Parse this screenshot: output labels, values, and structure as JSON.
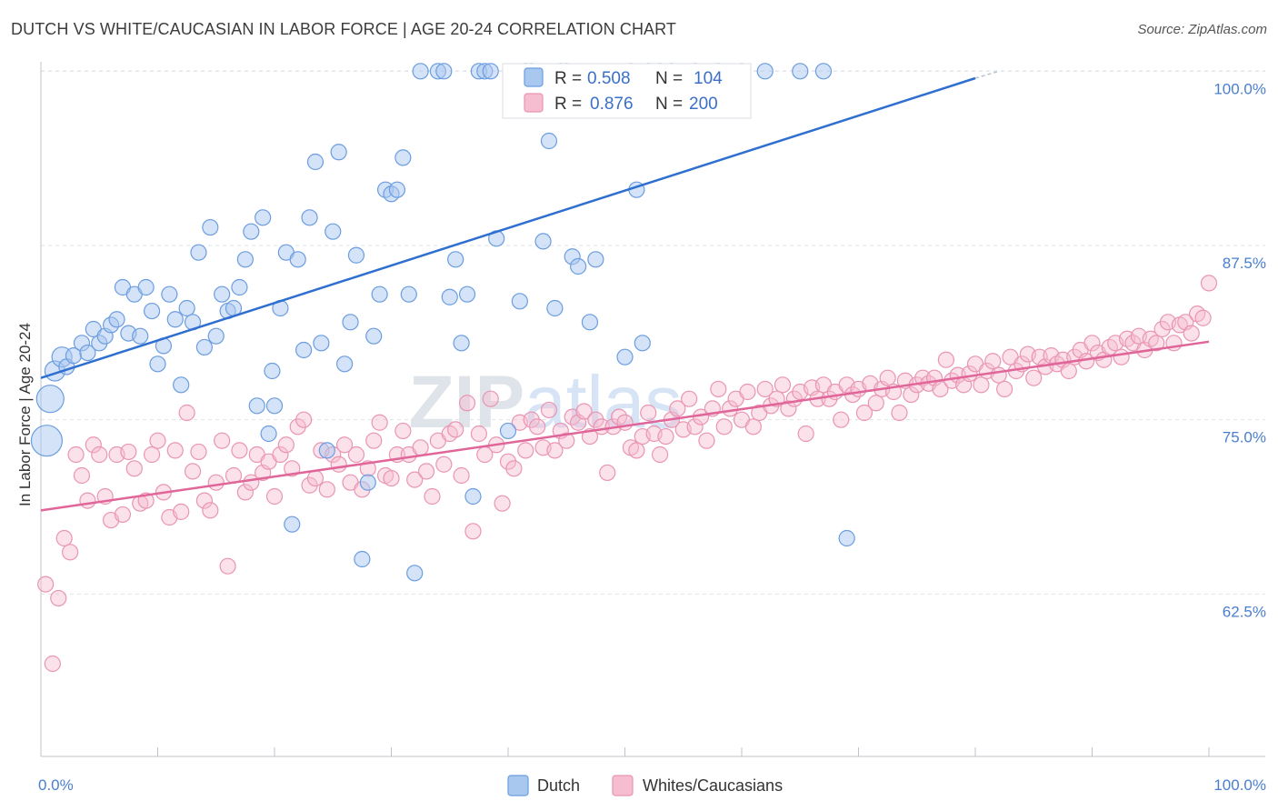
{
  "title": "DUTCH VS WHITE/CAUCASIAN IN LABOR FORCE | AGE 20-24 CORRELATION CHART",
  "source": "Source: ZipAtlas.com",
  "colors": {
    "dutch_fill": "#a9c8f0",
    "dutch_stroke": "#6b9de0",
    "dutch_line": "#2f6fcf",
    "white_fill": "#f6bcd0",
    "white_stroke": "#e995b3",
    "white_line": "#e0669a",
    "tick_text": "#4a7fd0",
    "grid": "#dde1ea"
  },
  "watermark": "ZIPatlas",
  "legend": {
    "rows": [
      {
        "series": "Dutch",
        "r_label": "R =",
        "r_value": "0.508",
        "n_label": "N =",
        "n_value": "104"
      },
      {
        "series": "Whites/Caucasians",
        "r_label": "R =",
        "r_value": "0.876",
        "n_label": "N =",
        "n_value": "200"
      }
    ]
  },
  "chart_data": {
    "type": "scatter",
    "title": "DUTCH VS WHITE/CAUCASIAN IN LABOR FORCE | AGE 20-24 CORRELATION CHART",
    "xlabel": "",
    "ylabel": "In Labor Force | Age 20-24",
    "xlim": [
      0,
      100
    ],
    "ylim": [
      50,
      102
    ],
    "x_tick_labels": [
      "0.0%",
      "100.0%"
    ],
    "y_ticks": [
      62.5,
      75.0,
      87.5,
      100.0
    ],
    "y_tick_labels": [
      "62.5%",
      "75.0%",
      "87.5%",
      "100.0%"
    ],
    "grid": true,
    "legend_position": "top-center",
    "series": [
      {
        "name": "Dutch",
        "trend": {
          "x": [
            0,
            80
          ],
          "y": [
            78.0,
            99.5
          ]
        },
        "points": [
          [
            0.5,
            73.5
          ],
          [
            0.8,
            76.5
          ],
          [
            1.2,
            78.5
          ],
          [
            1.8,
            79.5
          ],
          [
            2.2,
            78.8
          ],
          [
            2.8,
            79.6
          ],
          [
            3.5,
            80.5
          ],
          [
            4,
            79.8
          ],
          [
            4.5,
            81.5
          ],
          [
            5,
            80.5
          ],
          [
            5.5,
            81
          ],
          [
            6,
            81.8
          ],
          [
            6.5,
            82.2
          ],
          [
            7,
            84.5
          ],
          [
            7.5,
            81.2
          ],
          [
            8,
            84
          ],
          [
            8.5,
            81
          ],
          [
            9,
            84.5
          ],
          [
            9.5,
            82.8
          ],
          [
            10,
            79
          ],
          [
            10.5,
            80.3
          ],
          [
            11,
            84
          ],
          [
            11.5,
            82.2
          ],
          [
            12,
            77.5
          ],
          [
            12.5,
            83
          ],
          [
            13,
            82
          ],
          [
            13.5,
            87
          ],
          [
            14,
            80.2
          ],
          [
            14.5,
            88.8
          ],
          [
            15,
            81
          ],
          [
            15.5,
            84
          ],
          [
            16,
            82.8
          ],
          [
            16.5,
            83
          ],
          [
            17,
            84.5
          ],
          [
            17.5,
            86.5
          ],
          [
            18,
            88.5
          ],
          [
            18.5,
            76
          ],
          [
            19,
            89.5
          ],
          [
            19.5,
            74
          ],
          [
            19.8,
            78.5
          ],
          [
            20,
            76
          ],
          [
            20.5,
            83
          ],
          [
            21,
            87
          ],
          [
            21.5,
            67.5
          ],
          [
            22,
            86.5
          ],
          [
            22.5,
            80
          ],
          [
            23,
            89.5
          ],
          [
            23.5,
            93.5
          ],
          [
            24,
            80.5
          ],
          [
            24.5,
            72.8
          ],
          [
            25,
            88.5
          ],
          [
            25.5,
            94.2
          ],
          [
            26,
            79
          ],
          [
            26.5,
            82
          ],
          [
            27,
            86.8
          ],
          [
            27.5,
            65
          ],
          [
            28,
            70.5
          ],
          [
            28.5,
            81
          ],
          [
            29,
            84
          ],
          [
            29.5,
            91.5
          ],
          [
            30,
            91.2
          ],
          [
            30.5,
            91.5
          ],
          [
            31,
            93.8
          ],
          [
            31.5,
            84
          ],
          [
            32,
            64
          ],
          [
            32.5,
            100
          ],
          [
            34,
            100
          ],
          [
            34.5,
            100
          ],
          [
            35,
            83.8
          ],
          [
            35.5,
            86.5
          ],
          [
            36,
            80.5
          ],
          [
            36.5,
            84
          ],
          [
            37,
            69.5
          ],
          [
            37.5,
            100
          ],
          [
            38,
            100
          ],
          [
            38.5,
            100
          ],
          [
            39,
            88
          ],
          [
            40,
            74.2
          ],
          [
            41,
            83.5
          ],
          [
            41.5,
            100
          ],
          [
            42,
            100
          ],
          [
            43,
            87.8
          ],
          [
            43.5,
            95
          ],
          [
            44,
            83
          ],
          [
            44.5,
            100
          ],
          [
            45,
            100
          ],
          [
            45.5,
            86.7
          ],
          [
            46,
            86
          ],
          [
            47,
            82
          ],
          [
            47.5,
            86.5
          ],
          [
            50,
            79.5
          ],
          [
            50.5,
            100
          ],
          [
            51,
            91.5
          ],
          [
            51.5,
            80.5
          ],
          [
            52,
            100
          ],
          [
            53,
            100
          ],
          [
            54,
            100
          ],
          [
            56,
            100
          ],
          [
            58,
            100
          ],
          [
            60,
            100
          ],
          [
            62,
            100
          ],
          [
            65,
            100
          ],
          [
            67,
            100
          ],
          [
            69,
            66.5
          ]
        ]
      },
      {
        "name": "Whites/Caucasians",
        "trend": {
          "x": [
            0,
            100
          ],
          "y": [
            68.5,
            80.6
          ]
        },
        "points": [
          [
            0.4,
            63.2
          ],
          [
            1,
            57.5
          ],
          [
            1.5,
            62.2
          ],
          [
            2,
            66.5
          ],
          [
            2.5,
            65.5
          ],
          [
            3,
            72.5
          ],
          [
            3.5,
            71
          ],
          [
            4,
            69.2
          ],
          [
            4.5,
            73.2
          ],
          [
            5,
            72.5
          ],
          [
            5.5,
            69.5
          ],
          [
            6,
            67.8
          ],
          [
            6.5,
            72.5
          ],
          [
            7,
            68.2
          ],
          [
            7.5,
            72.7
          ],
          [
            8,
            71.5
          ],
          [
            8.5,
            69
          ],
          [
            9,
            69.2
          ],
          [
            9.5,
            72.5
          ],
          [
            10,
            73.5
          ],
          [
            10.5,
            69.8
          ],
          [
            11,
            68
          ],
          [
            11.5,
            72.8
          ],
          [
            12,
            68.4
          ],
          [
            12.5,
            75.5
          ],
          [
            13,
            71.3
          ],
          [
            13.5,
            72.7
          ],
          [
            14,
            69.2
          ],
          [
            14.5,
            68.5
          ],
          [
            15,
            70.5
          ],
          [
            15.5,
            73.5
          ],
          [
            16,
            64.5
          ],
          [
            16.5,
            71
          ],
          [
            17,
            72.8
          ],
          [
            17.5,
            69.8
          ],
          [
            18,
            70.5
          ],
          [
            18.5,
            72.5
          ],
          [
            19,
            71.2
          ],
          [
            19.5,
            72
          ],
          [
            20,
            69.5
          ],
          [
            20.5,
            72.5
          ],
          [
            21,
            73.2
          ],
          [
            21.5,
            71.5
          ],
          [
            22,
            74.5
          ],
          [
            22.5,
            75
          ],
          [
            23,
            70.3
          ],
          [
            23.5,
            70.8
          ],
          [
            24,
            72.8
          ],
          [
            24.5,
            70
          ],
          [
            25,
            72.5
          ],
          [
            25.5,
            71.8
          ],
          [
            26,
            73.2
          ],
          [
            26.5,
            70.5
          ],
          [
            27,
            72.5
          ],
          [
            27.5,
            70
          ],
          [
            28,
            71.5
          ],
          [
            28.5,
            73.5
          ],
          [
            29,
            74.8
          ],
          [
            29.5,
            71
          ],
          [
            30,
            70.8
          ],
          [
            30.5,
            72.5
          ],
          [
            31,
            74.2
          ],
          [
            31.5,
            72.5
          ],
          [
            32,
            70.7
          ],
          [
            32.5,
            73
          ],
          [
            33,
            71.3
          ],
          [
            33.5,
            69.5
          ],
          [
            34,
            73.5
          ],
          [
            34.5,
            71.8
          ],
          [
            35,
            74
          ],
          [
            35.5,
            74.3
          ],
          [
            36,
            71
          ],
          [
            36.5,
            76.2
          ],
          [
            37,
            67
          ],
          [
            37.5,
            74
          ],
          [
            38,
            72.5
          ],
          [
            38.5,
            76.5
          ],
          [
            39,
            73.2
          ],
          [
            39.5,
            69
          ],
          [
            40,
            72
          ],
          [
            40.5,
            71.5
          ],
          [
            41,
            74.8
          ],
          [
            41.5,
            72.8
          ],
          [
            42,
            75
          ],
          [
            42.5,
            74.5
          ],
          [
            43,
            73
          ],
          [
            43.5,
            75.7
          ],
          [
            44,
            72.8
          ],
          [
            44.5,
            74.2
          ],
          [
            45,
            73.5
          ],
          [
            45.5,
            75.2
          ],
          [
            46,
            74.8
          ],
          [
            46.5,
            75.6
          ],
          [
            47,
            73.8
          ],
          [
            47.5,
            75
          ],
          [
            48,
            74.5
          ],
          [
            48.5,
            71.2
          ],
          [
            49,
            74.5
          ],
          [
            49.5,
            75.2
          ],
          [
            50,
            74.8
          ],
          [
            50.5,
            73
          ],
          [
            51,
            72.8
          ],
          [
            51.5,
            73.8
          ],
          [
            52,
            75.5
          ],
          [
            52.5,
            74
          ],
          [
            53,
            72.5
          ],
          [
            53.5,
            73.8
          ],
          [
            54,
            75
          ],
          [
            54.5,
            75.8
          ],
          [
            55,
            74.3
          ],
          [
            55.5,
            76.5
          ],
          [
            56,
            74.5
          ],
          [
            56.5,
            75.2
          ],
          [
            57,
            73.5
          ],
          [
            57.5,
            75.8
          ],
          [
            58,
            77.2
          ],
          [
            58.5,
            74.5
          ],
          [
            59,
            75.8
          ],
          [
            59.5,
            76.5
          ],
          [
            60,
            75
          ],
          [
            60.5,
            77
          ],
          [
            61,
            74.5
          ],
          [
            61.5,
            75.5
          ],
          [
            62,
            77.2
          ],
          [
            62.5,
            76
          ],
          [
            63,
            76.5
          ],
          [
            63.5,
            77.5
          ],
          [
            64,
            75.8
          ],
          [
            64.5,
            76.5
          ],
          [
            65,
            77
          ],
          [
            65.5,
            74
          ],
          [
            66,
            77.3
          ],
          [
            66.5,
            76.5
          ],
          [
            67,
            77.5
          ],
          [
            67.5,
            76.5
          ],
          [
            68,
            77
          ],
          [
            68.5,
            75
          ],
          [
            69,
            77.5
          ],
          [
            69.5,
            76.8
          ],
          [
            70,
            77.2
          ],
          [
            70.5,
            75.5
          ],
          [
            71,
            77.6
          ],
          [
            71.5,
            76.2
          ],
          [
            72,
            77.2
          ],
          [
            72.5,
            78
          ],
          [
            73,
            77
          ],
          [
            73.5,
            75.5
          ],
          [
            74,
            77.8
          ],
          [
            74.5,
            76.8
          ],
          [
            75,
            77.5
          ],
          [
            75.5,
            78
          ],
          [
            76,
            77.6
          ],
          [
            76.5,
            78
          ],
          [
            77,
            77.2
          ],
          [
            77.5,
            79.3
          ],
          [
            78,
            77.8
          ],
          [
            78.5,
            78.2
          ],
          [
            79,
            77.5
          ],
          [
            79.5,
            78.3
          ],
          [
            80,
            79
          ],
          [
            80.5,
            77.5
          ],
          [
            81,
            78.5
          ],
          [
            81.5,
            79.2
          ],
          [
            82,
            78.2
          ],
          [
            82.5,
            77.2
          ],
          [
            83,
            79.5
          ],
          [
            83.5,
            78.5
          ],
          [
            84,
            79
          ],
          [
            84.5,
            79.7
          ],
          [
            85,
            78
          ],
          [
            85.5,
            79.5
          ],
          [
            86,
            78.8
          ],
          [
            86.5,
            79.6
          ],
          [
            87,
            79
          ],
          [
            87.5,
            79.3
          ],
          [
            88,
            78.5
          ],
          [
            88.5,
            79.5
          ],
          [
            89,
            80
          ],
          [
            89.5,
            79.2
          ],
          [
            90,
            80.5
          ],
          [
            90.5,
            79.8
          ],
          [
            91,
            79.3
          ],
          [
            91.5,
            80.2
          ],
          [
            92,
            80.5
          ],
          [
            92.5,
            79.5
          ],
          [
            93,
            80.8
          ],
          [
            93.5,
            80.5
          ],
          [
            94,
            81
          ],
          [
            94.5,
            80
          ],
          [
            95,
            80.8
          ],
          [
            95.5,
            80.5
          ],
          [
            96,
            81.5
          ],
          [
            96.5,
            82
          ],
          [
            97,
            80.5
          ],
          [
            97.5,
            81.8
          ],
          [
            98,
            82
          ],
          [
            98.5,
            81.2
          ],
          [
            99,
            82.6
          ],
          [
            99.5,
            82.3
          ],
          [
            100,
            84.8
          ]
        ]
      }
    ]
  },
  "bottom_legend": [
    {
      "label": "Dutch"
    },
    {
      "label": "Whites/Caucasians"
    }
  ]
}
